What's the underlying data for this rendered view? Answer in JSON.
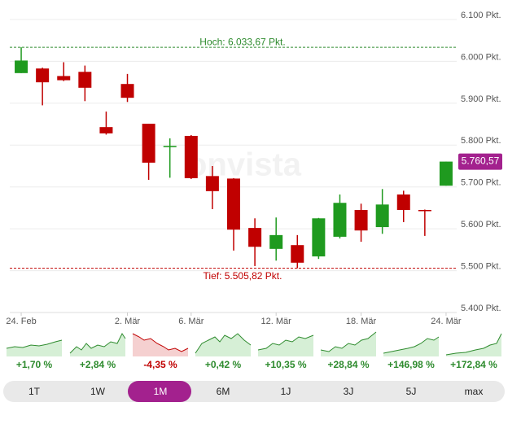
{
  "chart_data": {
    "type": "candlestick",
    "categories": [
      "24. Feb",
      null,
      null,
      null,
      null,
      "2. Mär",
      null,
      null,
      "6. Mär",
      null,
      null,
      null,
      "12. Mär",
      null,
      null,
      null,
      "18. Mär",
      null,
      null,
      null,
      "24. Mär"
    ],
    "open": [
      5972,
      5983,
      5965,
      5975,
      5843,
      5946,
      5851,
      5795,
      5822,
      5726,
      5720,
      5602,
      5552,
      5561,
      5534,
      5581,
      5645,
      5604,
      5682,
      5645,
      5703
    ],
    "high": [
      6033.67,
      5985,
      5998,
      5990,
      5880,
      5970,
      5851,
      5816,
      5824,
      5750,
      5721,
      5625,
      5627,
      5585,
      5626,
      5682,
      5660,
      5695,
      5691,
      5646,
      5760.57
    ],
    "low": [
      5972,
      5895,
      5953,
      5905,
      5825,
      5903,
      5717,
      5722,
      5719,
      5647,
      5548,
      5511,
      5524,
      5505.82,
      5528,
      5577,
      5569,
      5588,
      5616,
      5583,
      5703
    ],
    "close": [
      6002,
      5950,
      5955,
      5937,
      5828,
      5913,
      5758,
      5798,
      5721,
      5690,
      5598,
      5557,
      5585,
      5519,
      5625,
      5662,
      5596,
      5658,
      5645,
      5643,
      5760.57
    ],
    "up_color": "#1f9a1f",
    "down_color": "#c00000",
    "ylim": [
      5400,
      6100
    ],
    "yticks": [
      {
        "value": 5400,
        "label": "5.400 Pkt."
      },
      {
        "value": 5500,
        "label": "5.500 Pkt."
      },
      {
        "value": 5600,
        "label": "5.600 Pkt."
      },
      {
        "value": 5700,
        "label": "5.700 Pkt."
      },
      {
        "value": 5800,
        "label": "5.800 Pkt."
      },
      {
        "value": 5900,
        "label": "5.900 Pkt."
      },
      {
        "value": 6000,
        "label": "6.000 Pkt."
      },
      {
        "value": 6100,
        "label": "6.100 Pkt."
      }
    ],
    "grid": true,
    "high_line": {
      "value": 6033.67,
      "label": "Hoch: 6.033,67 Pkt.",
      "color": "#2e8b2e"
    },
    "low_line": {
      "value": 5505.82,
      "label": "Tief: 5.505,82 Pkt.",
      "color": "#c00000"
    },
    "last_price": {
      "value": 5760.57,
      "label": "5.760,57",
      "color": "#a3218e"
    },
    "watermark": "onvista"
  },
  "periods": [
    {
      "name": "1T",
      "change": 1.7,
      "change_label": "+1,70 %"
    },
    {
      "name": "1W",
      "change": 2.84,
      "change_label": "+2,84 %"
    },
    {
      "name": "1M",
      "change": -4.35,
      "change_label": "-4,35 %",
      "selected": true
    },
    {
      "name": "6M",
      "change": 0.42,
      "change_label": "+0,42 %"
    },
    {
      "name": "1J",
      "change": 10.35,
      "change_label": "+10,35 %"
    },
    {
      "name": "3J",
      "change": 28.84,
      "change_label": "+28,84 %"
    },
    {
      "name": "5J",
      "change": 146.98,
      "change_label": "+146,98 %"
    },
    {
      "name": "max",
      "change": 172.84,
      "change_label": "+172,84 %"
    }
  ]
}
